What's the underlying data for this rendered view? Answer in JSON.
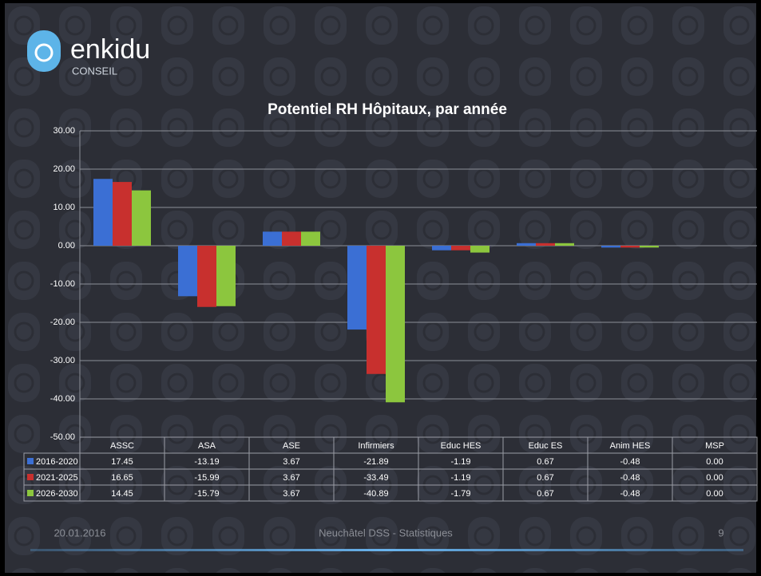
{
  "logo": {
    "name": "enkidu",
    "tagline": "CONSEIL"
  },
  "chart_data": {
    "type": "bar",
    "title": "Potentiel RH Hôpitaux, par année",
    "categories": [
      "ASSC",
      "ASA",
      "ASE",
      "Infirmiers",
      "Educ HES",
      "Educ ES",
      "Anim HES",
      "MSP"
    ],
    "series": [
      {
        "name": "2016-2020",
        "color": "#3b6fd4",
        "values": [
          17.45,
          -13.19,
          3.67,
          -21.89,
          -1.19,
          0.67,
          -0.48,
          0
        ],
        "value_labels": [
          "17.45",
          "-13.19",
          "3.67",
          "-21.89",
          "-1.19",
          "0.67",
          "-0.48",
          "0.00"
        ]
      },
      {
        "name": "2021-2025",
        "color": "#c8302e",
        "values": [
          16.65,
          -15.99,
          3.67,
          -33.49,
          -1.19,
          0.67,
          -0.48,
          0
        ],
        "value_labels": [
          "16.65",
          "-15.99",
          "3.67",
          "-33.49",
          "-1.19",
          "0.67",
          "-0.48",
          "0.00"
        ]
      },
      {
        "name": "2026-2030",
        "color": "#8cc63e",
        "values": [
          14.45,
          -15.79,
          3.67,
          -40.89,
          -1.79,
          0.67,
          -0.48,
          0
        ],
        "value_labels": [
          "14.45",
          "-15.79",
          "3.67",
          "-40.89",
          "-1.79",
          "0.67",
          "-0.48",
          "0.00"
        ]
      }
    ],
    "ylim": [
      -50,
      30
    ],
    "yticks": [
      {
        "value": -50,
        "label": "-50.00"
      },
      {
        "value": -40,
        "label": "-40.00"
      },
      {
        "value": -30,
        "label": "-30.00"
      },
      {
        "value": -20,
        "label": "-20.00"
      },
      {
        "value": -10,
        "label": "-10.00"
      },
      {
        "value": 0,
        "label": "0.00"
      },
      {
        "value": 10,
        "label": "10.00"
      },
      {
        "value": 20,
        "label": "20.00"
      },
      {
        "value": 30,
        "label": "30.00"
      }
    ],
    "grid": true
  },
  "footer": {
    "date": "20.01.2016",
    "center": "Neuchâtel DSS - Statistiques",
    "page": "9"
  }
}
